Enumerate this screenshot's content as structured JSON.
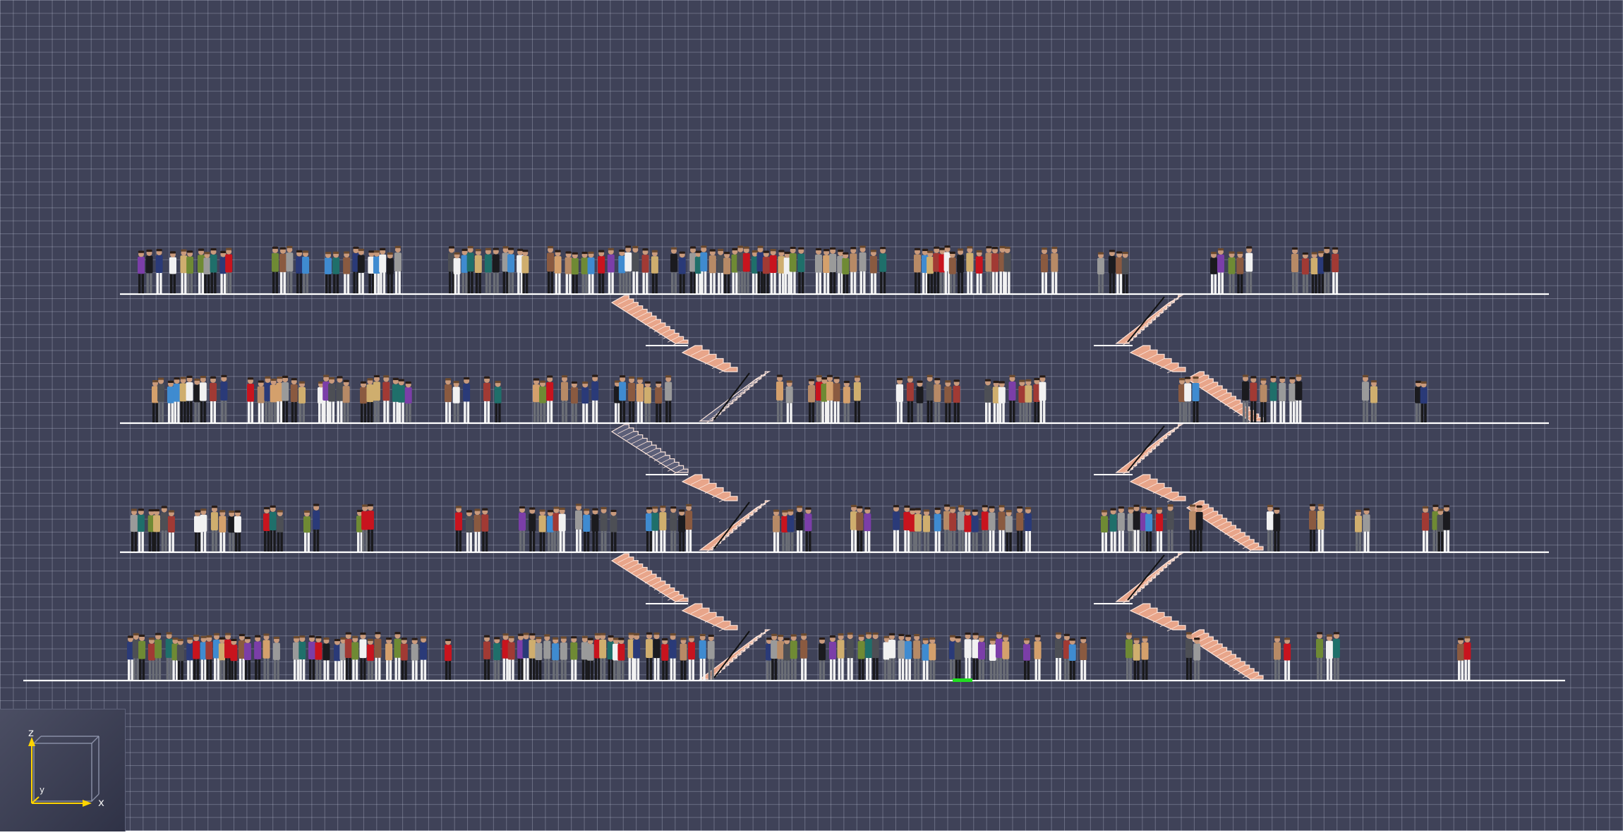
{
  "viewport": {
    "background": "#3f4258",
    "grid_color": "#c8cde0",
    "floor_color": "#ffffff",
    "stair_color": "#e8a58a",
    "stair_edge_color": "#fbe4da",
    "stair_shadow_color": "#5c5f78",
    "selected_marker_color": "#22dd22"
  },
  "scene": {
    "floors": 4,
    "stairwells": 2,
    "agent_color_palette": [
      "#c8141e",
      "#1b1b1f",
      "#f1f1f1",
      "#8a5a40",
      "#4d4f55",
      "#3f8bd0",
      "#6f8a34",
      "#7b3ea8",
      "#b78a66",
      "#2a3a78",
      "#a13a34",
      "#9a9a9a",
      "#d4a06c",
      "#1f6f6a",
      "#cfae6e"
    ]
  },
  "axis_widget": {
    "z_label": "z",
    "y_label": "y",
    "x_label": "x",
    "z_color": "#ffd400",
    "x_color": "#ffd400",
    "y_color": "#ffd400"
  }
}
